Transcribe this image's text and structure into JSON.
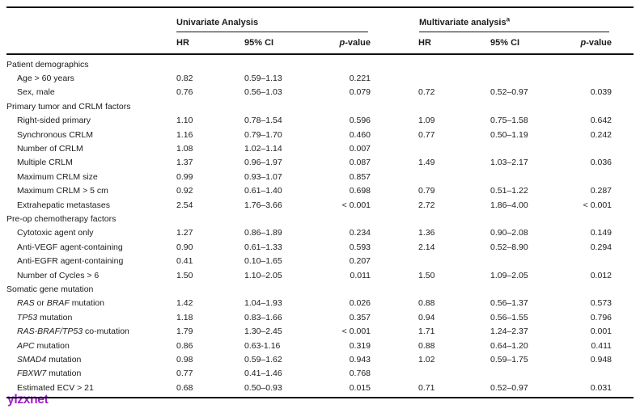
{
  "page": {
    "background": "#ffffff",
    "text_color": "#1c1c1c",
    "rule_color": "#101010"
  },
  "watermark": {
    "text": "ylzxnet",
    "color": "#a41bd1"
  },
  "table": {
    "group_headers": {
      "univariate": "Univariate Analysis",
      "multivariate": "Multivariate analysis",
      "multivariate_sup": "a"
    },
    "columns": {
      "hr": "HR",
      "ci": "95% CI",
      "p_italic": "p",
      "p_rest": "-value"
    },
    "rows": [
      {
        "type": "section",
        "label": "Patient demographics"
      },
      {
        "type": "item",
        "label": "Age > 60 years",
        "u": [
          "0.82",
          "0.59–1.13",
          "0.221"
        ],
        "m": [
          "",
          "",
          ""
        ]
      },
      {
        "type": "item",
        "label": "Sex, male",
        "u": [
          "0.76",
          "0.56–1.03",
          "0.079"
        ],
        "m": [
          "0.72",
          "0.52–0.97",
          "0.039"
        ]
      },
      {
        "type": "section",
        "label": "Primary tumor and CRLM factors"
      },
      {
        "type": "item",
        "label": "Right-sided primary",
        "u": [
          "1.10",
          "0.78–1.54",
          "0.596"
        ],
        "m": [
          "1.09",
          "0.75–1.58",
          "0.642"
        ]
      },
      {
        "type": "item",
        "label": "Synchronous CRLM",
        "u": [
          "1.16",
          "0.79–1.70",
          "0.460"
        ],
        "m": [
          "0.77",
          "0.50–1.19",
          "0.242"
        ]
      },
      {
        "type": "item",
        "label": "Number of CRLM",
        "u": [
          "1.08",
          "1.02–1.14",
          "0.007"
        ],
        "m": [
          "",
          "",
          ""
        ]
      },
      {
        "type": "item",
        "label": "Multiple CRLM",
        "u": [
          "1.37",
          "0.96–1.97",
          "0.087"
        ],
        "m": [
          "1.49",
          "1.03–2.17",
          "0.036"
        ]
      },
      {
        "type": "item",
        "label": "Maximum CRLM size",
        "u": [
          "0.99",
          "0.93–1.07",
          "0.857"
        ],
        "m": [
          "",
          "",
          ""
        ]
      },
      {
        "type": "item",
        "label": "Maximum CRLM > 5 cm",
        "u": [
          "0.92",
          "0.61–1.40",
          "0.698"
        ],
        "m": [
          "0.79",
          "0.51–1.22",
          "0.287"
        ]
      },
      {
        "type": "item",
        "label": "Extrahepatic metastases",
        "u": [
          "2.54",
          "1.76–3.66",
          "< 0.001"
        ],
        "m": [
          "2.72",
          "1.86–4.00",
          "< 0.001"
        ]
      },
      {
        "type": "section",
        "label": "Pre-op chemotherapy factors"
      },
      {
        "type": "item",
        "label": "Cytotoxic agent only",
        "u": [
          "1.27",
          "0.86–1.89",
          "0.234"
        ],
        "m": [
          "1.36",
          "0.90–2.08",
          "0.149"
        ]
      },
      {
        "type": "item",
        "label": "Anti-VEGF agent-containing",
        "u": [
          "0.90",
          "0.61–1.33",
          "0.593"
        ],
        "m": [
          "2.14",
          "0.52–8.90",
          "0.294"
        ]
      },
      {
        "type": "item",
        "label": "Anti-EGFR agent-containing",
        "u": [
          "0.41",
          "0.10–1.65",
          "0.207"
        ],
        "m": [
          "",
          "",
          ""
        ]
      },
      {
        "type": "item",
        "label": "Number of Cycles > 6",
        "u": [
          "1.50",
          "1.10–2.05",
          "0.011"
        ],
        "m": [
          "1.50",
          "1.09–2.05",
          "0.012"
        ]
      },
      {
        "type": "section",
        "label": "Somatic gene mutation"
      },
      {
        "type": "item",
        "label": "*RAS* or *BRAF* mutation",
        "u": [
          "1.42",
          "1.04–1.93",
          "0.026"
        ],
        "m": [
          "0.88",
          "0.56–1.37",
          "0.573"
        ]
      },
      {
        "type": "item",
        "label": "*TP53* mutation",
        "u": [
          "1.18",
          "0.83–1.66",
          "0.357"
        ],
        "m": [
          "0.94",
          "0.56–1.55",
          "0.796"
        ]
      },
      {
        "type": "item",
        "label": "*RAS-BRAF/TP53* co-mutation",
        "u": [
          "1.79",
          "1.30–2.45",
          "< 0.001"
        ],
        "m": [
          "1.71",
          "1.24–2.37",
          "0.001"
        ]
      },
      {
        "type": "item",
        "label": "*APC* mutation",
        "u": [
          "0.86",
          "0.63-1.16",
          "0.319"
        ],
        "m": [
          "0.88",
          "0.64–1.20",
          "0.411"
        ]
      },
      {
        "type": "item",
        "label": "*SMAD4* mutation",
        "u": [
          "0.98",
          "0.59–1.62",
          "0.943"
        ],
        "m": [
          "1.02",
          "0.59–1.75",
          "0.948"
        ]
      },
      {
        "type": "item",
        "label": "*FBXW7* mutation",
        "u": [
          "0.77",
          "0.41–1.46",
          "0.768"
        ],
        "m": [
          "",
          "",
          ""
        ]
      },
      {
        "type": "item",
        "label": "Estimated ECV > 21",
        "u": [
          "0.68",
          "0.50–0.93",
          "0.015"
        ],
        "m": [
          "0.71",
          "0.52–0.97",
          "0.031"
        ]
      }
    ]
  }
}
